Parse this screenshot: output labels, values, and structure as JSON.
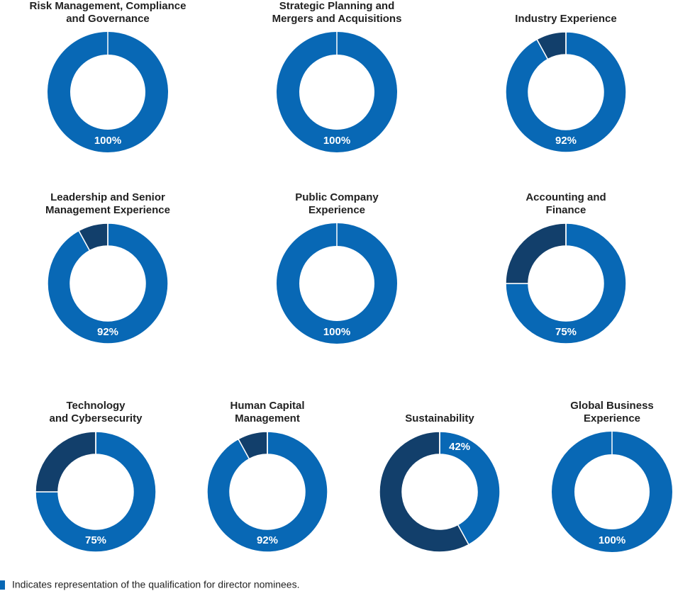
{
  "chart_data": [
    {
      "type": "pie",
      "title": [
        "Risk Management, Compliance",
        "and Governance"
      ],
      "values": [
        100
      ],
      "value_labels": [
        "100%"
      ],
      "colors": [
        "#0868b5"
      ]
    },
    {
      "type": "pie",
      "title": [
        "Strategic Planning and",
        "Mergers and Acquisitions"
      ],
      "values": [
        100
      ],
      "value_labels": [
        "100%"
      ],
      "colors": [
        "#0868b5"
      ]
    },
    {
      "type": "pie",
      "title": [
        "Industry Experience"
      ],
      "values": [
        92,
        8
      ],
      "value_labels": [
        "92%",
        null
      ],
      "colors": [
        "#0868b5",
        "#123f6b"
      ]
    },
    {
      "type": "pie",
      "title": [
        "Leadership and Senior",
        "Management Experience"
      ],
      "values": [
        92,
        8
      ],
      "value_labels": [
        "92%",
        null
      ],
      "colors": [
        "#0868b5",
        "#123f6b"
      ]
    },
    {
      "type": "pie",
      "title": [
        "Public Company",
        "Experience"
      ],
      "values": [
        100
      ],
      "value_labels": [
        "100%"
      ],
      "colors": [
        "#0868b5"
      ]
    },
    {
      "type": "pie",
      "title": [
        "Accounting and",
        "Finance"
      ],
      "values": [
        75,
        25
      ],
      "value_labels": [
        "75%",
        null
      ],
      "colors": [
        "#0868b5",
        "#123f6b"
      ]
    },
    {
      "type": "pie",
      "title": [
        "Technology",
        "and Cybersecurity"
      ],
      "values": [
        75,
        25
      ],
      "value_labels": [
        "75%",
        null
      ],
      "colors": [
        "#0868b5",
        "#123f6b"
      ]
    },
    {
      "type": "pie",
      "title": [
        "Human Capital",
        "Management"
      ],
      "values": [
        92,
        8
      ],
      "value_labels": [
        "92%",
        null
      ],
      "colors": [
        "#0868b5",
        "#123f6b"
      ]
    },
    {
      "type": "pie",
      "title": [
        "Sustainability"
      ],
      "values": [
        42,
        58
      ],
      "value_labels": [
        "42%",
        null
      ],
      "colors": [
        "#0868b5",
        "#123f6b"
      ]
    },
    {
      "type": "pie",
      "title": [
        "Global Business",
        "Experience"
      ],
      "values": [
        100
      ],
      "value_labels": [
        "100%"
      ],
      "colors": [
        "#0868b5"
      ]
    }
  ],
  "legend": {
    "label": "Indicates representation of the qualification for director nominees.",
    "color": "#0868b5"
  }
}
